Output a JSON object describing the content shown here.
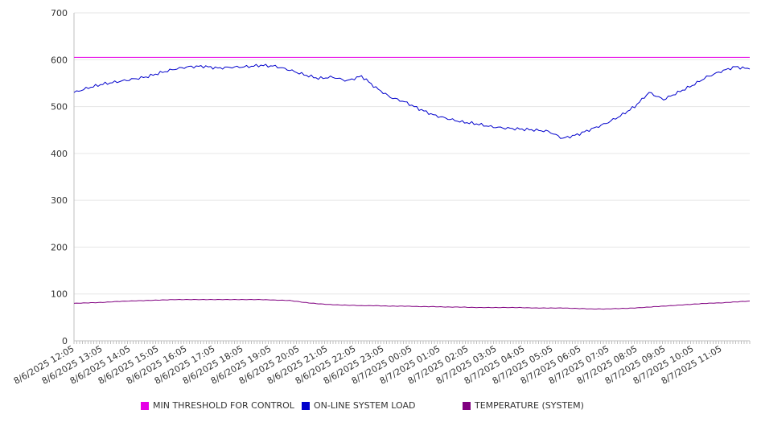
{
  "chart_data": {
    "type": "line",
    "title": "",
    "xlabel": "",
    "ylabel": "",
    "ylim": [
      0,
      700
    ],
    "yticks": [
      "0",
      "100",
      "200",
      "300",
      "400",
      "500",
      "600",
      "700"
    ],
    "grid": true,
    "legend_position": "bottom",
    "xtick_labels": [
      "8/6/2025 12:05",
      "8/6/2025 13:05",
      "8/6/2025 14:05",
      "8/6/2025 15:05",
      "8/6/2025 16:05",
      "8/6/2025 17:05",
      "8/6/2025 18:05",
      "8/6/2025 19:05",
      "8/6/2025 20:05",
      "8/6/2025 21:05",
      "8/6/2025 22:05",
      "8/6/2025 23:05",
      "8/7/2025 00:05",
      "8/7/2025 01:05",
      "8/7/2025 02:05",
      "8/7/2025 03:05",
      "8/7/2025 04:05",
      "8/7/2025 05:05",
      "8/7/2025 06:05",
      "8/7/2025 07:05",
      "8/7/2025 08:05",
      "8/7/2025 09:05",
      "8/7/2025 10:05",
      "8/7/2025 11:05"
    ],
    "x": [
      "8/6/2025 12:05",
      "8/6/2025 12:35",
      "8/6/2025 13:05",
      "8/6/2025 13:35",
      "8/6/2025 14:05",
      "8/6/2025 14:35",
      "8/6/2025 15:05",
      "8/6/2025 15:35",
      "8/6/2025 16:05",
      "8/6/2025 16:35",
      "8/6/2025 17:05",
      "8/6/2025 17:35",
      "8/6/2025 18:05",
      "8/6/2025 18:35",
      "8/6/2025 19:05",
      "8/6/2025 19:35",
      "8/6/2025 20:05",
      "8/6/2025 20:35",
      "8/6/2025 21:05",
      "8/6/2025 21:35",
      "8/6/2025 22:05",
      "8/6/2025 22:35",
      "8/6/2025 23:05",
      "8/6/2025 23:35",
      "8/7/2025 00:05",
      "8/7/2025 00:35",
      "8/7/2025 01:05",
      "8/7/2025 01:35",
      "8/7/2025 02:05",
      "8/7/2025 02:35",
      "8/7/2025 03:05",
      "8/7/2025 03:35",
      "8/7/2025 04:05",
      "8/7/2025 04:35",
      "8/7/2025 05:05",
      "8/7/2025 05:35",
      "8/7/2025 06:05",
      "8/7/2025 06:35",
      "8/7/2025 07:05",
      "8/7/2025 07:35",
      "8/7/2025 08:05",
      "8/7/2025 08:35",
      "8/7/2025 09:05",
      "8/7/2025 09:35",
      "8/7/2025 10:05",
      "8/7/2025 10:35",
      "8/7/2025 11:05",
      "8/7/2025 11:35"
    ],
    "series": [
      {
        "name": "MIN THRESHOLD FOR CONTROL",
        "color": "#e600e6",
        "values": [
          605,
          605,
          605,
          605,
          605,
          605,
          605,
          605,
          605,
          605,
          605,
          605,
          605,
          605,
          605,
          605,
          605,
          605,
          605,
          605,
          605,
          605,
          605,
          605,
          605,
          605,
          605,
          605,
          605,
          605,
          605,
          605,
          605,
          605,
          605,
          605,
          605,
          605,
          605,
          605,
          605,
          605,
          605,
          605,
          605,
          605,
          605,
          605
        ]
      },
      {
        "name": "ON-LINE SYSTEM LOAD",
        "color": "#0000cc",
        "values": [
          530,
          540,
          548,
          553,
          558,
          563,
          572,
          580,
          585,
          586,
          582,
          584,
          585,
          588,
          586,
          578,
          568,
          560,
          563,
          555,
          565,
          540,
          520,
          510,
          495,
          482,
          474,
          467,
          463,
          457,
          454,
          452,
          450,
          447,
          432,
          440,
          452,
          464,
          480,
          500,
          530,
          515,
          530,
          545,
          563,
          575,
          585,
          580
        ]
      },
      {
        "name": "TEMPERATURE (SYSTEM)",
        "color": "#800080",
        "values": [
          80,
          81,
          82,
          84,
          85,
          86,
          87,
          88,
          88,
          88,
          88,
          88,
          88,
          88,
          87,
          86,
          82,
          79,
          77,
          76,
          75,
          75,
          74,
          74,
          73,
          73,
          72,
          72,
          71,
          71,
          71,
          71,
          70,
          70,
          70,
          69,
          68,
          68,
          69,
          70,
          72,
          74,
          76,
          78,
          80,
          81,
          83,
          85
        ]
      }
    ]
  }
}
